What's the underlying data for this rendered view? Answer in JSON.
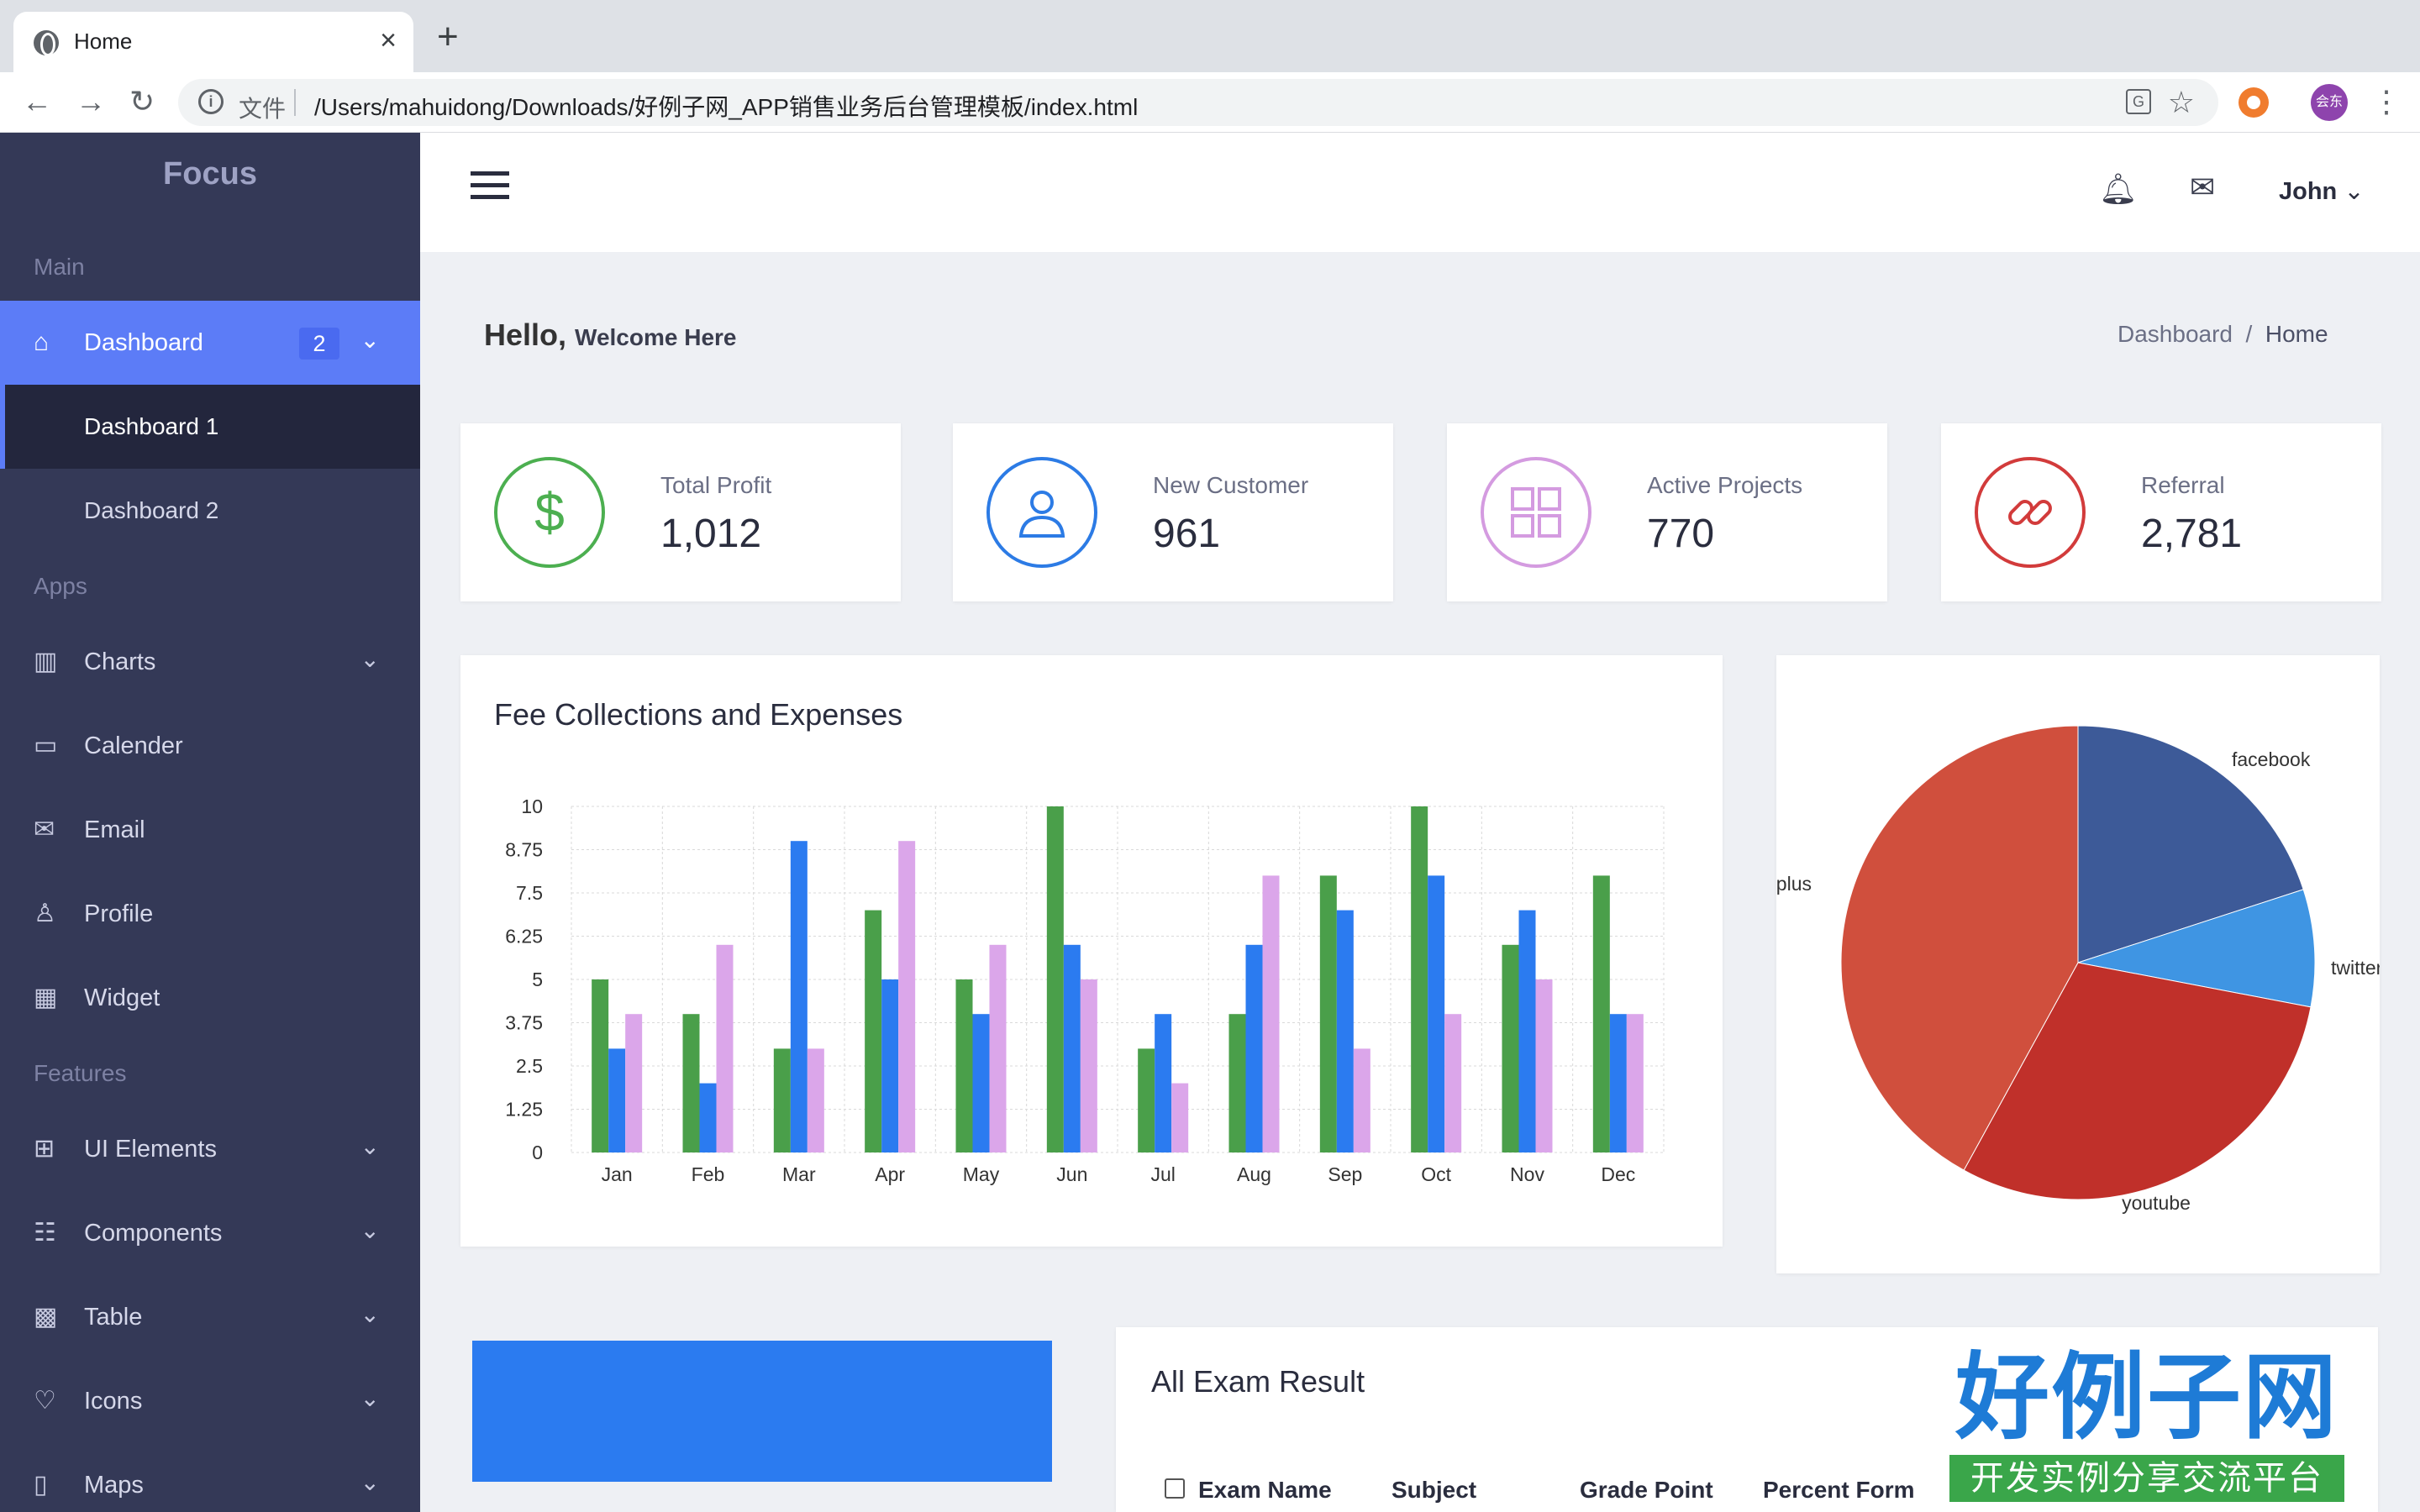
{
  "browser": {
    "tab_title": "Home",
    "scheme_label": "文件",
    "url": "/Users/mahuidong/Downloads/好例子网_APP销售业务后台管理模板/index.html",
    "profile_label": "会东"
  },
  "sidebar": {
    "brand": "Focus",
    "sections": {
      "main": "Main",
      "apps": "Apps",
      "features": "Features"
    },
    "dashboard": {
      "label": "Dashboard",
      "badge": "2"
    },
    "sub_items": [
      "Dashboard 1",
      "Dashboard 2"
    ],
    "apps": [
      "Charts",
      "Calender",
      "Email",
      "Profile",
      "Widget"
    ],
    "features": [
      "UI Elements",
      "Components",
      "Table",
      "Icons",
      "Maps"
    ]
  },
  "header": {
    "user": "John"
  },
  "main": {
    "greeting": "Hello,",
    "greeting_sub": "Welcome Here",
    "breadcrumb": [
      "Dashboard",
      "Home"
    ]
  },
  "stats": [
    {
      "label": "Total Profit",
      "value": "1,012",
      "icon": "dollar-icon",
      "color": "#4caf50"
    },
    {
      "label": "New Customer",
      "value": "961",
      "icon": "user-icon",
      "color": "#2c7be5"
    },
    {
      "label": "Active Projects",
      "value": "770",
      "icon": "grid-icon",
      "color": "#d49be0"
    },
    {
      "label": "Referral",
      "value": "2,781",
      "icon": "link-icon",
      "color": "#d23b3b"
    }
  ],
  "fee_card": {
    "title": "Fee Collections and Expenses"
  },
  "exam": {
    "title": "All Exam Result",
    "columns": [
      "Exam Name",
      "Subject",
      "Grade Point",
      "Percent Form"
    ]
  },
  "watermark": {
    "big": "好例子网",
    "small": "开发实例分享交流平台"
  },
  "chart_data": [
    {
      "type": "bar",
      "categories": [
        "Jan",
        "Feb",
        "Mar",
        "Apr",
        "May",
        "Jun",
        "Jul",
        "Aug",
        "Sep",
        "Oct",
        "Nov",
        "Dec"
      ],
      "ylim": [
        0,
        10
      ],
      "yticks": [
        "0",
        "1.25",
        "2.5",
        "3.75",
        "5",
        "6.25",
        "7.5",
        "8.75",
        "10"
      ],
      "grid": true,
      "series": [
        {
          "color": "#4a9f4a",
          "values": [
            5,
            4,
            3,
            7,
            5,
            10,
            3,
            4,
            8,
            10,
            6,
            8
          ]
        },
        {
          "color": "#2b7bf0",
          "values": [
            3,
            2,
            9,
            5,
            4,
            6,
            4,
            6,
            7,
            8,
            7,
            4
          ]
        },
        {
          "color": "#dba6ea",
          "values": [
            4,
            6,
            3,
            9,
            6,
            5,
            2,
            8,
            3,
            4,
            5,
            4
          ]
        }
      ]
    },
    {
      "type": "pie",
      "slices": [
        {
          "label": "facebook",
          "value": 20,
          "color": "#3d5a98"
        },
        {
          "label": "twitter",
          "value": 8,
          "color": "#3f95e3"
        },
        {
          "label": "youtube",
          "value": 30,
          "color": "#c0302a"
        },
        {
          "label": "google plus",
          "value": 42,
          "color": "#d04f3d"
        }
      ]
    }
  ]
}
